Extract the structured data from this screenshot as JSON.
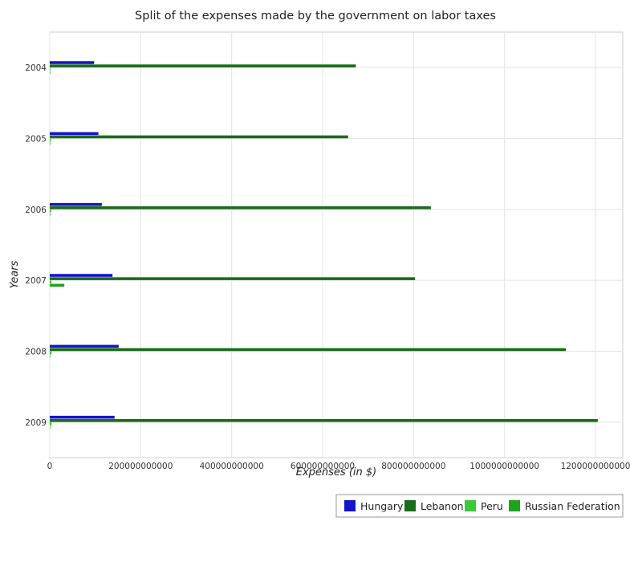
{
  "chart_data": {
    "type": "bar",
    "orientation": "horizontal",
    "title": "Split of the expenses made by the government on labor taxes",
    "xlabel": "Expenses (in $)",
    "ylabel": "Years",
    "categories": [
      "2004",
      "2005",
      "2006",
      "2007",
      "2008",
      "2009"
    ],
    "xlim": [
      0,
      1260000000000
    ],
    "x_ticks": [
      0,
      200000000000,
      400000000000,
      600000000000,
      800000000000,
      1000000000000,
      1200000000000
    ],
    "x_tick_labels": [
      "0",
      "200000000000",
      "400000000000",
      "600000000000",
      "800000000000",
      "1000000000000",
      "1200000000000"
    ],
    "grid": true,
    "legend_position": "bottom-right",
    "series": [
      {
        "name": "Hungary",
        "color": "#1414c8",
        "values": [
          97500000000,
          107000000000,
          114500000000,
          138000000000,
          151500000000,
          142500000000
        ]
      },
      {
        "name": "Lebanon",
        "color": "#1a6b1a",
        "values": [
          673000000000,
          656000000000,
          838000000000,
          803000000000,
          1135000000000,
          1205000000000
        ]
      },
      {
        "name": "Peru",
        "color": "#3cc83c",
        "values": [
          1500000000,
          2500000000,
          3000000000,
          3500000000,
          4000000000,
          4000000000
        ]
      },
      {
        "name": "Russian Federation",
        "color": "#1fa31f",
        "values": [
          400000000,
          200000000,
          300000000,
          32000000000,
          300000000,
          100000000
        ]
      }
    ]
  }
}
